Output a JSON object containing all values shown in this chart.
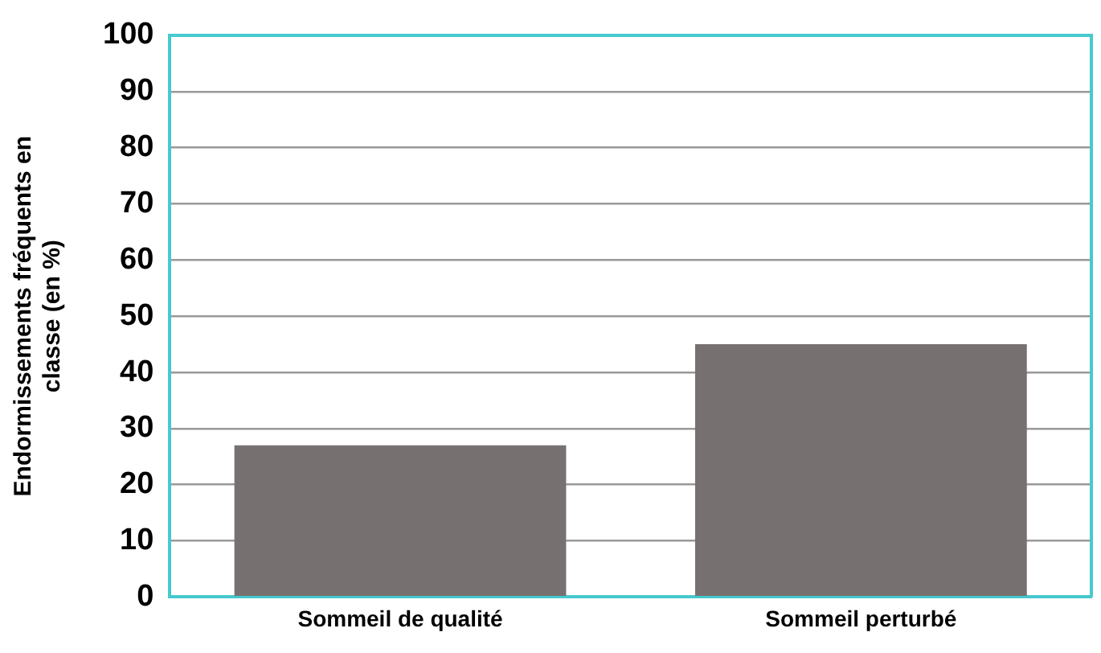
{
  "chart_data": {
    "type": "bar",
    "ylabel": "Endormissements fréquents en\nclasse (en %)",
    "categories": [
      "Sommeil de qualité",
      "Sommeil perturbé"
    ],
    "values": [
      27,
      45
    ],
    "color": "#767170",
    "ylim": [
      0,
      100
    ],
    "yticks": [
      0,
      10,
      20,
      30,
      40,
      50,
      60,
      70,
      80,
      90,
      100
    ],
    "grid": "y",
    "legend": false
  }
}
